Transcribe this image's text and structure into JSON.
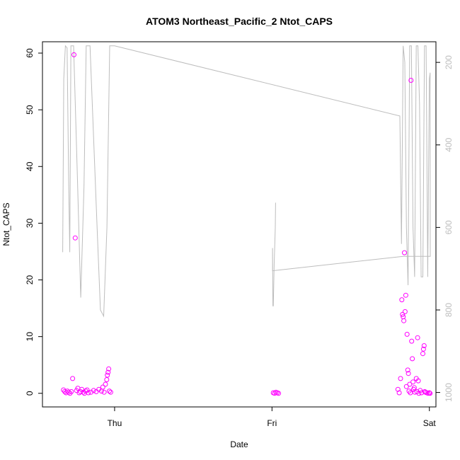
{
  "chart_data": {
    "type": "scatter",
    "title": "ATOM3 Northeast_Pacific_2 Ntot_CAPS",
    "xlabel": "Date",
    "ylabel": "Ntot_CAPS",
    "x_axis_type": "date",
    "x_ticks": [
      {
        "label": "Thu",
        "value": "2017-10-05T00:00"
      },
      {
        "label": "Fri",
        "value": "2017-10-06T00:00"
      },
      {
        "label": "Sat",
        "value": "2017-10-07T00:00"
      }
    ],
    "xlim": [
      "2017-10-04T13:00",
      "2017-10-07T01:00"
    ],
    "ylim": [
      -2.4,
      62
    ],
    "y_ticks": [
      0,
      10,
      20,
      30,
      40,
      50,
      60
    ],
    "right_axis": {
      "reversed": true,
      "ylim": [
        1035,
        150
      ],
      "ticks": [
        200,
        400,
        600,
        800,
        1000
      ],
      "color": "#bdbdbd"
    },
    "grid": false,
    "point_color": "#ff00ff",
    "line_color": "#bdbdbd",
    "series": [
      {
        "values_name": "Ntot_CAPS",
        "style": "points",
        "points": [
          [
            "2017-10-04T16:12",
            0.6
          ],
          [
            "2017-10-04T16:24",
            0.3
          ],
          [
            "2017-10-04T16:36",
            0.1
          ],
          [
            "2017-10-04T16:48",
            0.4
          ],
          [
            "2017-10-04T17:00",
            0.2
          ],
          [
            "2017-10-04T17:12",
            0.0
          ],
          [
            "2017-10-04T17:24",
            0.3
          ],
          [
            "2017-10-04T17:36",
            2.6
          ],
          [
            "2017-10-04T17:48",
            59.7
          ],
          [
            "2017-10-04T18:00",
            27.4
          ],
          [
            "2017-10-04T18:12",
            0.5
          ],
          [
            "2017-10-04T18:24",
            0.9
          ],
          [
            "2017-10-04T18:36",
            0.1
          ],
          [
            "2017-10-04T18:48",
            0.3
          ],
          [
            "2017-10-04T19:00",
            0.7
          ],
          [
            "2017-10-04T19:12",
            0.2
          ],
          [
            "2017-10-04T19:24",
            0.0
          ],
          [
            "2017-10-04T19:36",
            0.4
          ],
          [
            "2017-10-04T19:48",
            0.6
          ],
          [
            "2017-10-04T20:00",
            0.1
          ],
          [
            "2017-10-04T20:24",
            0.2
          ],
          [
            "2017-10-04T20:48",
            0.5
          ],
          [
            "2017-10-04T21:12",
            0.3
          ],
          [
            "2017-10-04T21:36",
            0.7
          ],
          [
            "2017-10-04T22:00",
            0.4
          ],
          [
            "2017-10-04T22:12",
            1.1
          ],
          [
            "2017-10-04T22:24",
            0.2
          ],
          [
            "2017-10-04T22:36",
            1.6
          ],
          [
            "2017-10-04T22:48",
            2.4
          ],
          [
            "2017-10-04T22:54",
            3.2
          ],
          [
            "2017-10-04T23:00",
            3.7
          ],
          [
            "2017-10-04T23:06",
            4.3
          ],
          [
            "2017-10-04T23:12",
            0.4
          ],
          [
            "2017-10-04T23:24",
            0.2
          ],
          [
            "2017-10-06T00:12",
            0.1
          ],
          [
            "2017-10-06T00:24",
            0.0
          ],
          [
            "2017-10-06T00:36",
            0.2
          ],
          [
            "2017-10-06T00:48",
            0.1
          ],
          [
            "2017-10-06T01:00",
            0.0
          ],
          [
            "2017-10-06T19:12",
            0.7
          ],
          [
            "2017-10-06T19:24",
            0.1
          ],
          [
            "2017-10-06T19:36",
            2.6
          ],
          [
            "2017-10-06T19:48",
            16.5
          ],
          [
            "2017-10-06T19:54",
            13.9
          ],
          [
            "2017-10-06T20:00",
            13.5
          ],
          [
            "2017-10-06T20:06",
            12.8
          ],
          [
            "2017-10-06T20:12",
            24.8
          ],
          [
            "2017-10-06T20:18",
            14.4
          ],
          [
            "2017-10-06T20:24",
            17.3
          ],
          [
            "2017-10-06T20:30",
            1.2
          ],
          [
            "2017-10-06T20:36",
            10.4
          ],
          [
            "2017-10-06T20:42",
            4.1
          ],
          [
            "2017-10-06T20:48",
            3.5
          ],
          [
            "2017-10-06T20:54",
            0.4
          ],
          [
            "2017-10-06T21:00",
            1.6
          ],
          [
            "2017-10-06T21:06",
            0.1
          ],
          [
            "2017-10-06T21:12",
            55.2
          ],
          [
            "2017-10-06T21:18",
            9.2
          ],
          [
            "2017-10-06T21:24",
            6.1
          ],
          [
            "2017-10-06T21:30",
            2.0
          ],
          [
            "2017-10-06T21:36",
            0.7
          ],
          [
            "2017-10-06T21:42",
            1.0
          ],
          [
            "2017-10-06T21:48",
            0.2
          ],
          [
            "2017-10-06T22:00",
            2.6
          ],
          [
            "2017-10-06T22:06",
            0.3
          ],
          [
            "2017-10-06T22:12",
            9.8
          ],
          [
            "2017-10-06T22:18",
            2.2
          ],
          [
            "2017-10-06T22:24",
            0.0
          ],
          [
            "2017-10-06T22:36",
            0.5
          ],
          [
            "2017-10-06T22:48",
            0.1
          ],
          [
            "2017-10-06T23:00",
            7.0
          ],
          [
            "2017-10-06T23:06",
            7.8
          ],
          [
            "2017-10-06T23:12",
            8.4
          ],
          [
            "2017-10-06T23:18",
            0.3
          ],
          [
            "2017-10-06T23:24",
            0.2
          ],
          [
            "2017-10-06T23:36",
            0.1
          ],
          [
            "2017-10-06T23:48",
            0.0
          ],
          [
            "2017-10-07T00:00",
            0.1
          ],
          [
            "2017-10-07T00:06",
            0.0
          ]
        ]
      },
      {
        "values_name": "right-axis series",
        "style": "line",
        "axis": "right",
        "points": [
          [
            "2017-10-04T16:05",
            660
          ],
          [
            "2017-10-04T16:15",
            240
          ],
          [
            "2017-10-04T16:30",
            160
          ],
          [
            "2017-10-04T16:45",
            165
          ],
          [
            "2017-10-04T17:00",
            500
          ],
          [
            "2017-10-04T17:10",
            660
          ],
          [
            "2017-10-04T17:20",
            160
          ],
          [
            "2017-10-04T17:45",
            160
          ],
          [
            "2017-10-04T18:20",
            480
          ],
          [
            "2017-10-04T18:50",
            770
          ],
          [
            "2017-10-04T19:20",
            500
          ],
          [
            "2017-10-04T19:40",
            160
          ],
          [
            "2017-10-04T20:15",
            160
          ],
          [
            "2017-10-04T21:20",
            600
          ],
          [
            "2017-10-04T21:50",
            800
          ],
          [
            "2017-10-04T22:20",
            815
          ],
          [
            "2017-10-04T22:50",
            600
          ],
          [
            "2017-10-04T23:15",
            160
          ],
          [
            "2017-10-04T23:30",
            160
          ],
          [
            "2017-10-05T00:00",
            160
          ],
          [
            "2017-10-06T19:30",
            330
          ],
          [
            "2017-10-06T19:45",
            640
          ],
          [
            "2017-10-06T20:00",
            160
          ],
          [
            "2017-10-06T20:15",
            200
          ],
          [
            "2017-10-06T20:30",
            600
          ],
          [
            "2017-10-06T20:45",
            740
          ],
          [
            "2017-10-06T21:00",
            160
          ],
          [
            "2017-10-06T21:15",
            160
          ],
          [
            "2017-10-06T21:30",
            600
          ],
          [
            "2017-10-06T21:45",
            720
          ],
          [
            "2017-10-06T22:00",
            160
          ],
          [
            "2017-10-06T22:15",
            160
          ],
          [
            "2017-10-06T22:30",
            300
          ],
          [
            "2017-10-06T22:45",
            720
          ],
          [
            "2017-10-06T23:00",
            720
          ],
          [
            "2017-10-06T23:15",
            160
          ],
          [
            "2017-10-06T23:30",
            160
          ],
          [
            "2017-10-06T23:45",
            720
          ],
          [
            "2017-10-07T00:00",
            240
          ],
          [
            "2017-10-07T00:07",
            225
          ],
          [
            "2017-10-07T00:08",
            670
          ],
          [
            "2017-10-06T20:00",
            670
          ],
          [
            "2017-10-06T00:05",
            705
          ],
          [
            "2017-10-06T00:05",
            650
          ],
          [
            "2017-10-06T00:08",
            790
          ],
          [
            "2017-10-06T00:12",
            790
          ],
          [
            "2017-10-06T00:20",
            690
          ],
          [
            "2017-10-06T00:30",
            600
          ],
          [
            "2017-10-06T00:33",
            540
          ]
        ]
      }
    ]
  }
}
